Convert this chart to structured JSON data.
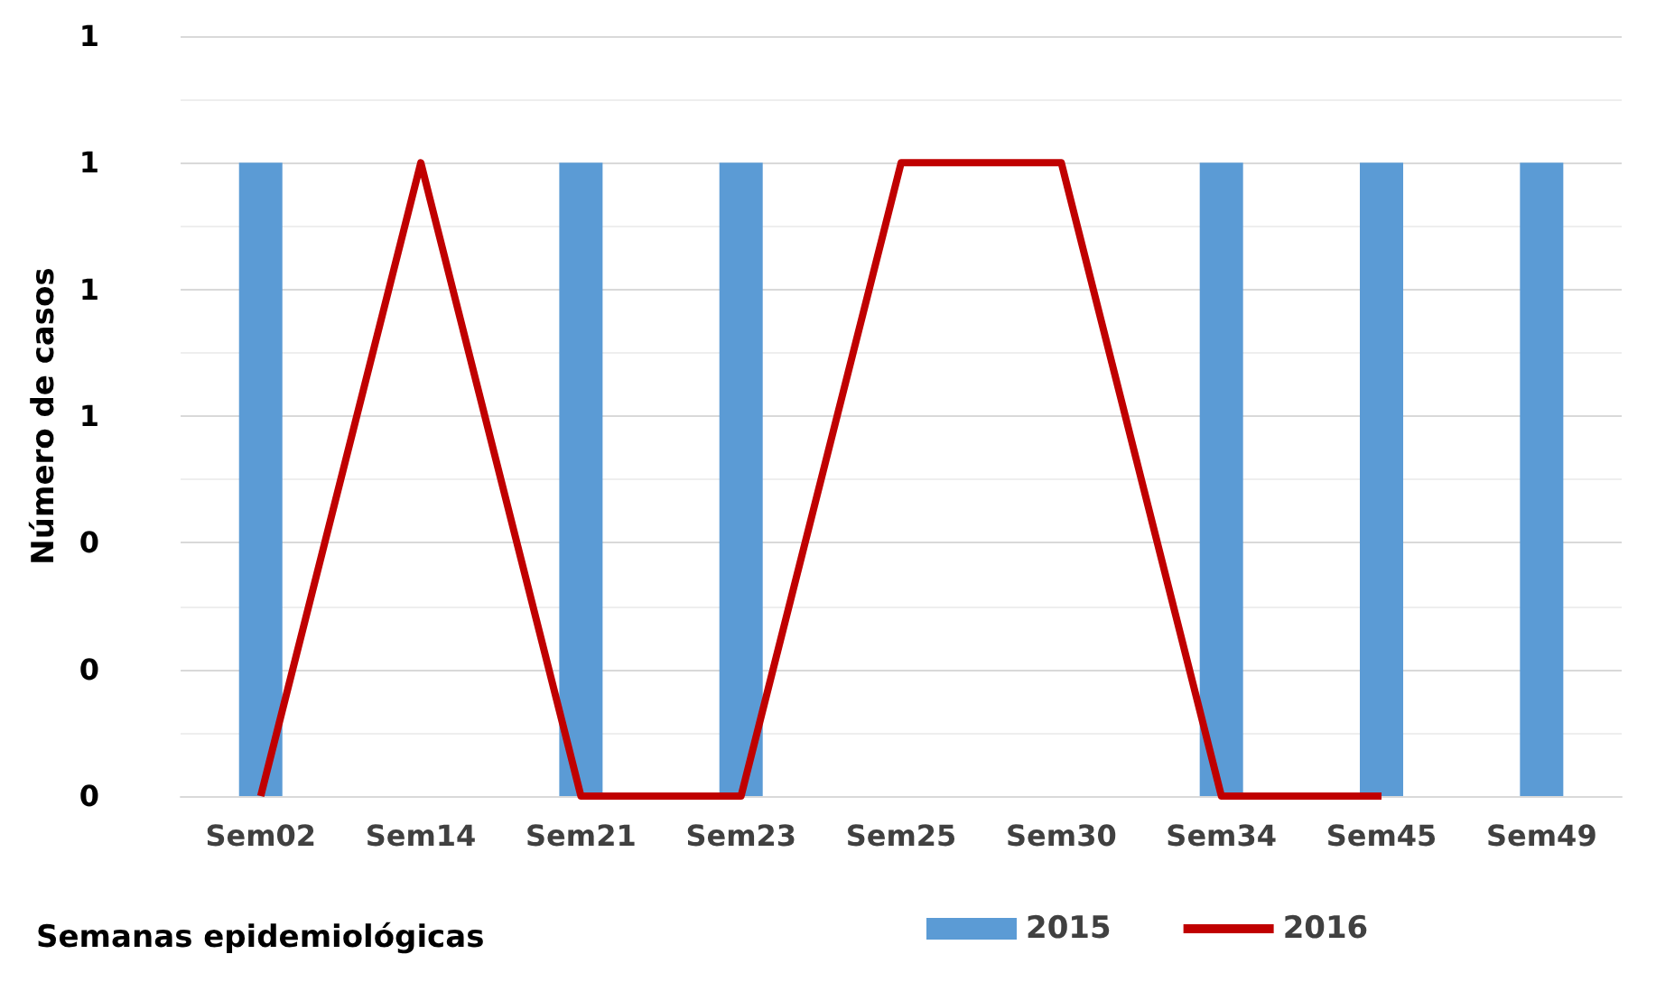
{
  "chart_data": {
    "type": "bar",
    "xlabel": "Semanas epidemiológicas",
    "ylabel": "Número de casos",
    "categories": [
      "Sem02",
      "Sem14",
      "Sem21",
      "Sem23",
      "Sem25",
      "Sem30",
      "Sem34",
      "Sem45",
      "Sem49"
    ],
    "series": [
      {
        "name": "2015",
        "color": "#5b9bd5",
        "values": [
          1,
          0,
          1,
          1,
          0,
          0,
          1,
          1,
          1
        ]
      },
      {
        "name": "2016",
        "type": "line",
        "color": "#c00000",
        "values": [
          0,
          1,
          0,
          0,
          1,
          1,
          0,
          0,
          null
        ]
      }
    ],
    "ylim": [
      0,
      1.2
    ],
    "yticks": [
      {
        "value": 0,
        "label": "0"
      },
      {
        "value": 0.2,
        "label": "0"
      },
      {
        "value": 0.4,
        "label": "0"
      },
      {
        "value": 0.6,
        "label": "1"
      },
      {
        "value": 0.8,
        "label": "1"
      },
      {
        "value": 1,
        "label": "1"
      },
      {
        "value": 1.2,
        "label": "1"
      }
    ],
    "grid": "y",
    "legend": "bottom",
    "marker": "none"
  }
}
